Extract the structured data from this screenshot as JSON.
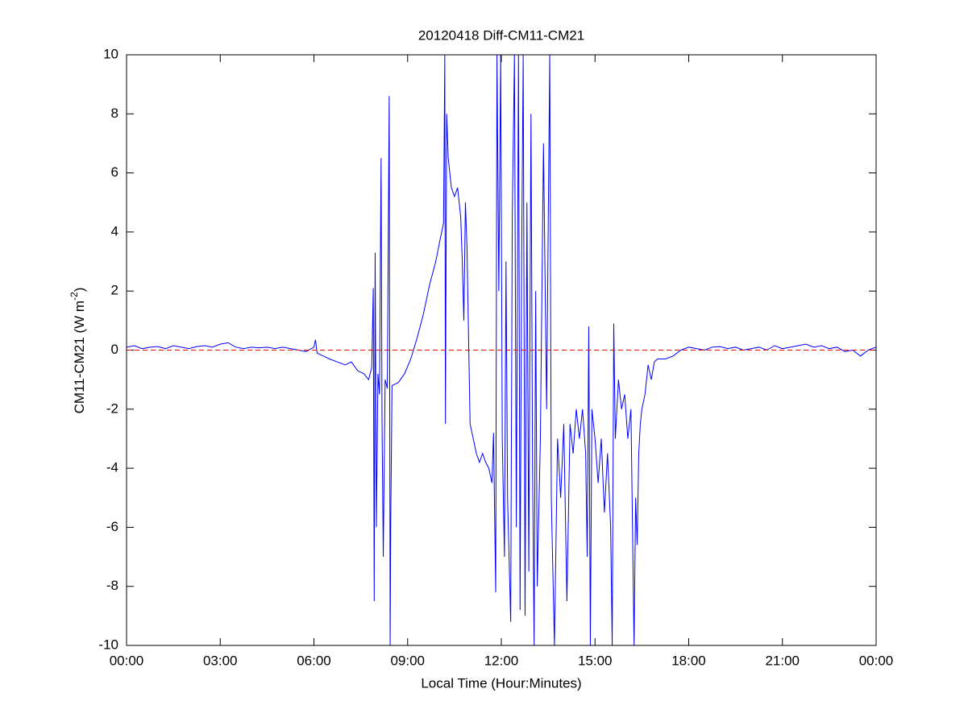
{
  "chart_data": {
    "type": "line",
    "title": "20120418 Diff-CM11-CM21",
    "xlabel": "Local Time (Hour:Minutes)",
    "ylabel": {
      "text": "CM11-CM21 (W m",
      "superscript": "-2",
      "suffix": ")"
    },
    "color": "#0000ff",
    "hline": {
      "value": 0,
      "color": "#ff0000",
      "dashed": true
    },
    "xlim": [
      0,
      24
    ],
    "xticks": [
      {
        "value": 0,
        "label": "00:00"
      },
      {
        "value": 3,
        "label": "03:00"
      },
      {
        "value": 6,
        "label": "06:00"
      },
      {
        "value": 9,
        "label": "09:00"
      },
      {
        "value": 12,
        "label": "12:00"
      },
      {
        "value": 15,
        "label": "15:00"
      },
      {
        "value": 18,
        "label": "18:00"
      },
      {
        "value": 21,
        "label": "21:00"
      },
      {
        "value": 24,
        "label": "00:00"
      }
    ],
    "ylim": [
      -10,
      10
    ],
    "yticks": [
      -10,
      -8,
      -6,
      -4,
      -2,
      0,
      2,
      4,
      6,
      8,
      10
    ],
    "x": [
      0,
      0.25,
      0.5,
      0.75,
      1,
      1.25,
      1.5,
      1.75,
      2,
      2.25,
      2.5,
      2.75,
      3,
      3.25,
      3.5,
      3.75,
      4,
      4.25,
      4.5,
      4.75,
      5,
      5.25,
      5.5,
      5.75,
      6,
      6.05,
      6.1,
      6.3,
      6.5,
      6.75,
      7,
      7.2,
      7.4,
      7.6,
      7.75,
      7.85,
      7.9,
      7.93,
      7.96,
      8.0,
      8.05,
      8.1,
      8.15,
      8.18,
      8.22,
      8.28,
      8.35,
      8.41,
      8.44,
      8.46,
      8.5,
      8.7,
      8.9,
      9.1,
      9.3,
      9.5,
      9.7,
      9.9,
      10.05,
      10.15,
      10.19,
      10.21,
      10.25,
      10.3,
      10.4,
      10.5,
      10.6,
      10.7,
      10.75,
      10.8,
      10.85,
      10.9,
      10.95,
      11.0,
      11.1,
      11.2,
      11.3,
      11.4,
      11.5,
      11.6,
      11.7,
      11.75,
      11.82,
      11.86,
      11.92,
      11.98,
      12.03,
      12.1,
      12.15,
      12.2,
      12.3,
      12.35,
      12.42,
      12.48,
      12.55,
      12.6,
      12.65,
      12.7,
      12.76,
      12.82,
      12.88,
      12.95,
      13.0,
      13.05,
      13.1,
      13.15,
      13.25,
      13.35,
      13.45,
      13.55,
      13.6,
      13.7,
      13.8,
      13.9,
      14.0,
      14.1,
      14.2,
      14.3,
      14.4,
      14.5,
      14.6,
      14.7,
      14.75,
      14.8,
      14.85,
      14.9,
      15.0,
      15.1,
      15.2,
      15.3,
      15.4,
      15.5,
      15.55,
      15.6,
      15.65,
      15.75,
      15.85,
      15.95,
      16.05,
      16.15,
      16.25,
      16.3,
      16.35,
      16.4,
      16.45,
      16.5,
      16.6,
      16.7,
      16.8,
      16.9,
      17.0,
      17.25,
      17.5,
      17.75,
      18.0,
      18.25,
      18.5,
      18.75,
      19.0,
      19.25,
      19.5,
      19.75,
      20,
      20.25,
      20.5,
      20.75,
      21,
      21.25,
      21.5,
      21.75,
      22,
      22.25,
      22.5,
      22.75,
      23,
      23.25,
      23.5,
      23.75,
      24
    ],
    "values": [
      0.1,
      0.15,
      0.05,
      0.1,
      0.12,
      0.05,
      0.15,
      0.1,
      0.05,
      0.12,
      0.15,
      0.1,
      0.2,
      0.25,
      0.1,
      0.05,
      0.1,
      0.08,
      0.1,
      0.05,
      0.1,
      0.05,
      0.0,
      -0.05,
      0.1,
      0.35,
      -0.1,
      -0.2,
      -0.3,
      -0.4,
      -0.5,
      -0.4,
      -0.7,
      -0.8,
      -1.0,
      -0.6,
      2.1,
      -8.5,
      3.3,
      -6.0,
      -0.8,
      -1.5,
      6.5,
      -2.3,
      -7.0,
      -1.0,
      -1.3,
      8.6,
      -10,
      -5.7,
      -1.2,
      -1.1,
      -0.8,
      -0.3,
      0.4,
      1.2,
      2.2,
      3.0,
      3.8,
      4.3,
      10,
      -2.5,
      8.0,
      6.5,
      5.5,
      5.2,
      5.5,
      4.5,
      3.0,
      1.0,
      5.0,
      3.5,
      0.5,
      -2.5,
      -3.0,
      -3.5,
      -3.8,
      -3.5,
      -3.8,
      -4.0,
      -4.5,
      -2.8,
      -8.2,
      10,
      2.0,
      10,
      -3,
      -7,
      3,
      -5,
      -9.2,
      4.5,
      10,
      -6,
      10,
      -8.8,
      3,
      10,
      -9,
      5,
      -7.5,
      8,
      -4,
      -10,
      2,
      -8,
      -3,
      7,
      -2,
      10,
      -5,
      -10,
      -3,
      -5,
      -2.5,
      -8.5,
      -2.5,
      -3.5,
      -2.0,
      -3.0,
      -2.0,
      -3.5,
      -7,
      0.8,
      -10,
      -2.0,
      -3.0,
      -4.5,
      -3.0,
      -5.5,
      -3.5,
      -6,
      -10,
      0.9,
      -3,
      -1,
      -2,
      -1.5,
      -3,
      -2.0,
      -10,
      -5,
      -6.6,
      -3.5,
      -2.5,
      -2.0,
      -1.5,
      -0.5,
      -1.0,
      -0.4,
      -0.3,
      -0.3,
      -0.2,
      0.0,
      0.1,
      0.05,
      0.0,
      0.1,
      0.12,
      0.05,
      0.1,
      0.0,
      0.05,
      0.1,
      0.0,
      0.15,
      0.05,
      0.1,
      0.15,
      0.2,
      0.1,
      0.15,
      0.05,
      0.1,
      -0.05,
      0.0,
      -0.2,
      0.0,
      0.1
    ]
  }
}
